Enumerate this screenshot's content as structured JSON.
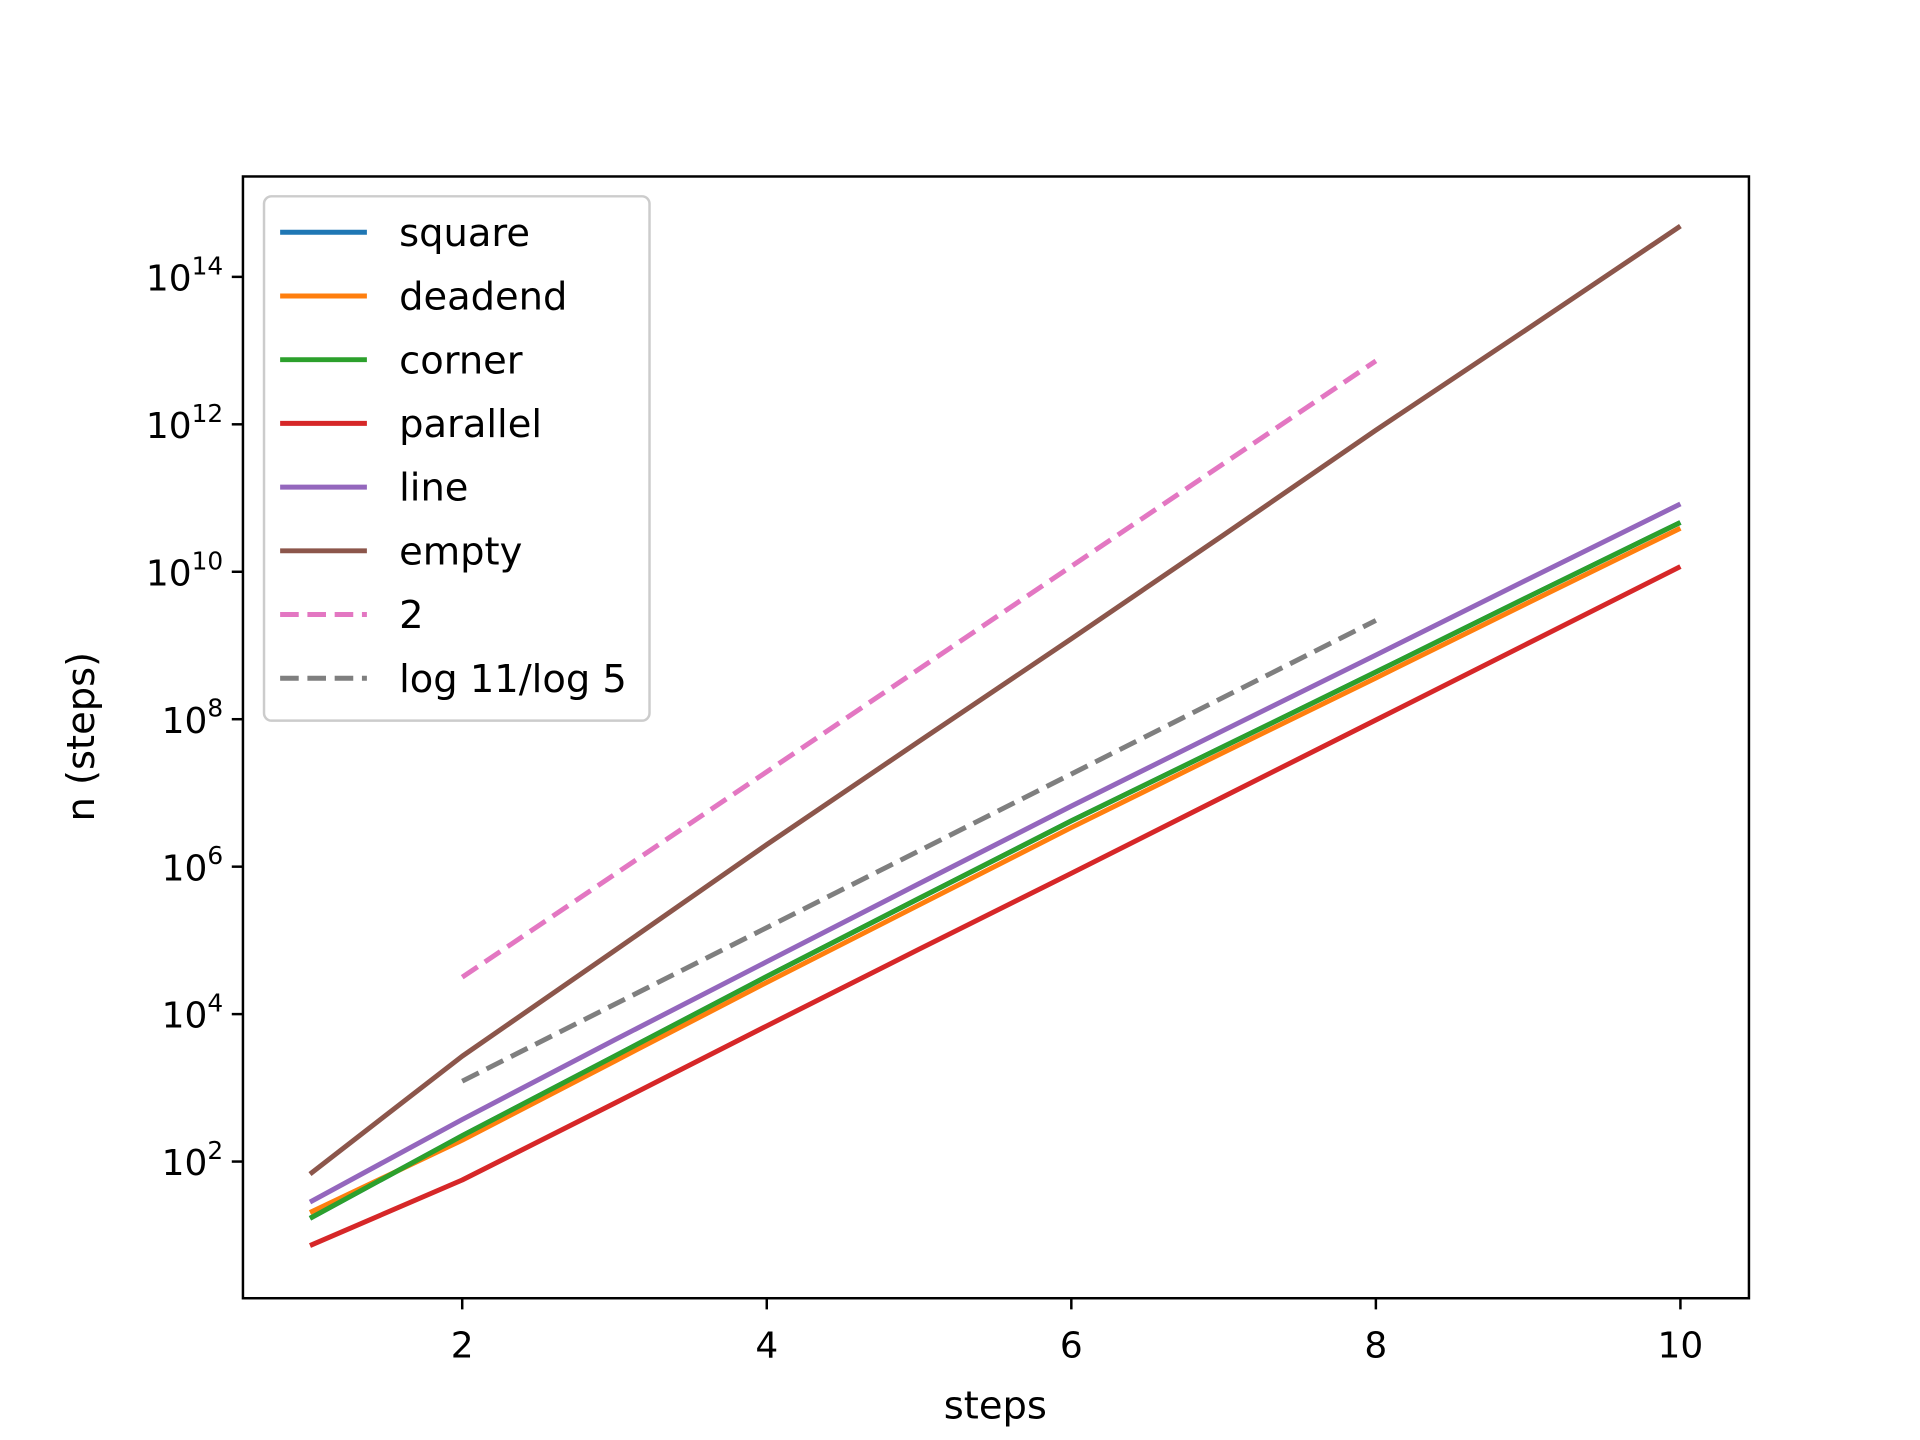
{
  "chart_data": {
    "type": "line",
    "title": "",
    "xlabel": "steps",
    "ylabel": "n (steps)",
    "xlim": [
      0.56,
      10.45
    ],
    "ylim": [
      1.4,
      2300000000000000.0
    ],
    "yscale": "log",
    "grid": false,
    "legend_placement": "upper-left",
    "x_ticks": [
      2,
      4,
      6,
      8,
      10
    ],
    "y_ticks": [
      {
        "base": "10",
        "exp": "2",
        "value": 100.0
      },
      {
        "base": "10",
        "exp": "4",
        "value": 10000.0
      },
      {
        "base": "10",
        "exp": "6",
        "value": 1000000.0
      },
      {
        "base": "10",
        "exp": "8",
        "value": 100000000.0
      },
      {
        "base": "10",
        "exp": "10",
        "value": 10000000000.0
      },
      {
        "base": "10",
        "exp": "12",
        "value": 1000000000000.0
      },
      {
        "base": "10",
        "exp": "14",
        "value": 100000000000000.0
      }
    ],
    "series": [
      {
        "name": "square",
        "color": "#1f77b4",
        "dash": false,
        "x": [
          1,
          2,
          3,
          4,
          5,
          6,
          7,
          8,
          9,
          10
        ],
        "log10_y": [
          1.23,
          2.35,
          3.43,
          4.51,
          5.57,
          6.62,
          7.63,
          8.64,
          9.66,
          10.67
        ]
      },
      {
        "name": "deadend",
        "color": "#ff7f0e",
        "dash": false,
        "x": [
          1,
          2,
          3,
          4,
          5,
          6,
          7,
          8,
          9,
          10
        ],
        "log10_y": [
          1.31,
          2.29,
          3.36,
          4.43,
          5.48,
          6.53,
          7.55,
          8.56,
          9.58,
          10.59
        ]
      },
      {
        "name": "corner",
        "color": "#2ca02c",
        "dash": false,
        "x": [
          1,
          2,
          3,
          4,
          5,
          6,
          7,
          8,
          9,
          10
        ],
        "log10_y": [
          1.23,
          2.35,
          3.43,
          4.51,
          5.57,
          6.62,
          7.63,
          8.64,
          9.66,
          10.67
        ]
      },
      {
        "name": "parallel",
        "color": "#d62728",
        "dash": false,
        "x": [
          1,
          2,
          3,
          4,
          5,
          6,
          7,
          8,
          9,
          10
        ],
        "log10_y": [
          0.86,
          1.75,
          2.79,
          3.84,
          4.88,
          5.91,
          6.95,
          7.99,
          9.03,
          10.07
        ]
      },
      {
        "name": "line",
        "color": "#9467bd",
        "dash": false,
        "x": [
          1,
          2,
          3,
          4,
          5,
          6,
          7,
          8,
          9,
          10
        ],
        "log10_y": [
          1.45,
          2.57,
          3.65,
          4.71,
          5.77,
          6.82,
          7.85,
          8.87,
          9.9,
          10.92
        ]
      },
      {
        "name": "empty",
        "color": "#8c564b",
        "dash": false,
        "x": [
          1,
          2,
          3,
          4,
          5,
          6,
          7,
          8,
          9,
          10
        ],
        "log10_y": [
          1.83,
          3.43,
          4.86,
          6.3,
          7.7,
          9.09,
          10.5,
          11.92,
          13.3,
          14.69
        ]
      },
      {
        "name": "2",
        "color": "#e377c2",
        "dash": true,
        "x": [
          2,
          8
        ],
        "log10_y": [
          4.5,
          12.86
        ]
      },
      {
        "name": "log 11/log 5",
        "color": "#7f7f7f",
        "dash": true,
        "x": [
          2,
          8
        ],
        "log10_y": [
          3.09,
          9.34
        ]
      }
    ]
  }
}
